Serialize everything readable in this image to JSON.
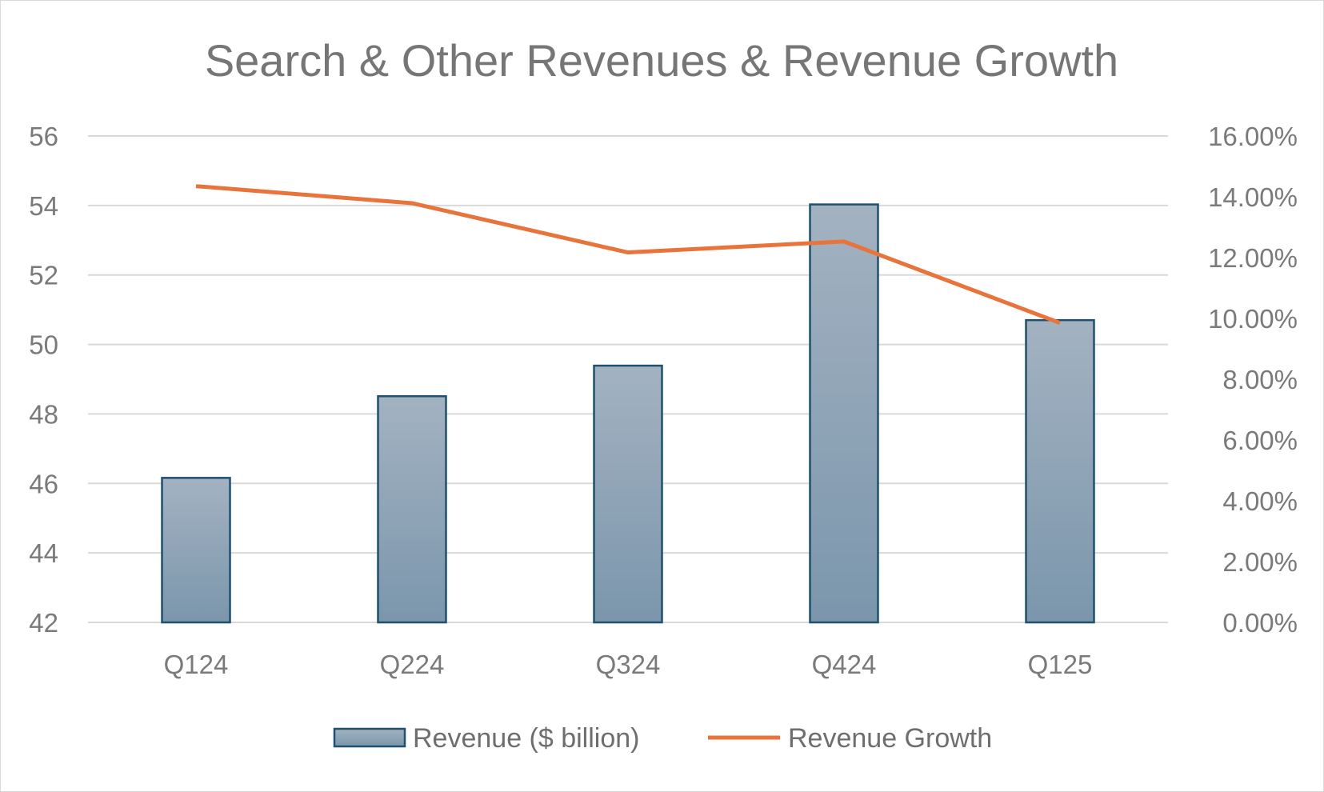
{
  "chart_data": {
    "type": "bar",
    "title": "Search & Other Revenues & Revenue Growth",
    "categories": [
      "Q124",
      "Q224",
      "Q324",
      "Q424",
      "Q125"
    ],
    "series": [
      {
        "name": "Revenue ($ billion)",
        "type": "bar",
        "axis": "left",
        "values": [
          46.16,
          48.51,
          49.39,
          54.03,
          50.7
        ],
        "color": "#8fa3b5",
        "border_color": "#1f5070"
      },
      {
        "name": "Revenue Growth",
        "type": "line",
        "axis": "right",
        "values": [
          0.1435,
          0.1379,
          0.1217,
          0.1253,
          0.0985
        ],
        "color": "#e8743b"
      }
    ],
    "y_left": {
      "min": 42,
      "max": 56,
      "ticks": [
        "42",
        "44",
        "46",
        "48",
        "50",
        "52",
        "54",
        "56"
      ]
    },
    "y_right": {
      "min": 0,
      "max": 0.16,
      "ticks": [
        "0.00%",
        "2.00%",
        "4.00%",
        "6.00%",
        "8.00%",
        "10.00%",
        "12.00%",
        "14.00%",
        "16.00%"
      ]
    },
    "grid": true,
    "legend_position": "bottom"
  }
}
